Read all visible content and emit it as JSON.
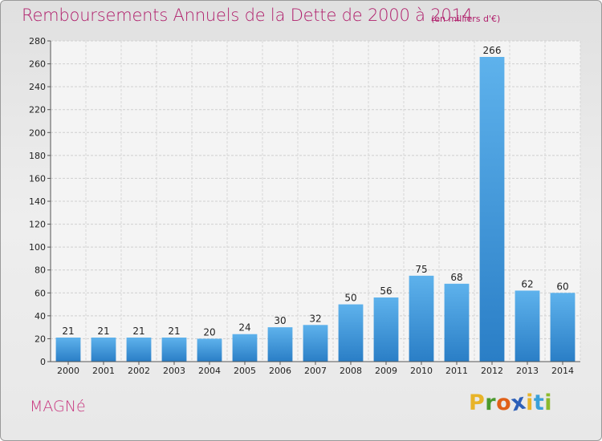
{
  "chart_data": {
    "type": "bar",
    "title": "Remboursements Annuels de la Dette de 2000 à 2014",
    "subtitle": "(en milliers d'€)",
    "categories": [
      "2000",
      "2001",
      "2002",
      "2003",
      "2004",
      "2005",
      "2006",
      "2007",
      "2008",
      "2009",
      "2010",
      "2011",
      "2012",
      "2013",
      "2014"
    ],
    "values": [
      21,
      21,
      21,
      21,
      20,
      24,
      30,
      32,
      50,
      56,
      75,
      68,
      266,
      62,
      60
    ],
    "ylim": [
      0,
      280
    ],
    "yticks": [
      0,
      20,
      40,
      60,
      80,
      100,
      120,
      140,
      160,
      180,
      200,
      220,
      240,
      260,
      280
    ],
    "xlabel": "",
    "ylabel": "",
    "grid": true,
    "bar_color": "#3a94d8"
  },
  "footer": {
    "commune": "MAGNé",
    "logo_letters": [
      "P",
      "r",
      "o",
      "x",
      "i",
      "t",
      "i"
    ],
    "logo_colors": [
      "#e8b428",
      "#4a9a2e",
      "#e06018",
      "#2c5fb8",
      "#e8b428",
      "#3aa0d8",
      "#8cba2c"
    ]
  }
}
